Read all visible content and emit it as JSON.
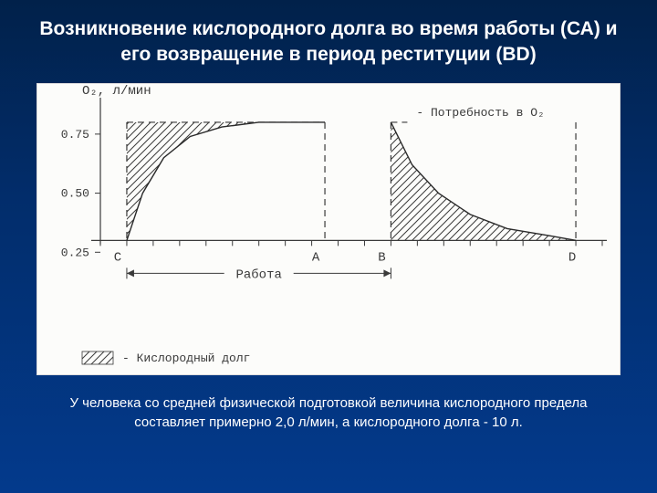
{
  "title": "Возникновение кислородного  долга во время работы (СА) и его возвращение в период реституции (BD)",
  "caption": "У человека со средней физической подготовкой величина кислородного предела составляет примерно 2,0 л/мин, а кислородного долга - 10 л.",
  "chart": {
    "type": "line",
    "background_color": "#fcfcfa",
    "axis_color": "#3a3a3a",
    "curve_color": "#2a2a2a",
    "hatch_color": "#3a3a3a",
    "label_color": "#3a3a3a",
    "label_font_family": "Courier New, monospace",
    "label_fontsize": 14,
    "small_label_fontsize": 13,
    "y_axis_label": "O₂, л/мин",
    "y_ticks": [
      {
        "value": 0.25,
        "label": "0.25"
      },
      {
        "value": 0.5,
        "label": "0.50"
      },
      {
        "value": 0.75,
        "label": "0.75"
      }
    ],
    "ylim": [
      0.0,
      0.85
    ],
    "xlim": [
      0,
      19
    ],
    "baseline_y": 0.3,
    "plateau_y": 0.8,
    "nodes": [
      {
        "id": "C",
        "x": 1.0,
        "label": "C"
      },
      {
        "id": "A",
        "x": 8.5,
        "label": "A"
      },
      {
        "id": "B",
        "x": 11.0,
        "label": "B"
      },
      {
        "id": "D",
        "x": 18.0,
        "label": "D"
      }
    ],
    "x_tick_step": 1,
    "work_label": "Работа",
    "legend": [
      {
        "key": "hatch",
        "label": "- Кислородный долг"
      },
      {
        "key": "dashed",
        "label": "- Потребность в O₂"
      }
    ],
    "deficit_curve": [
      {
        "x": 1.0,
        "y": 0.3
      },
      {
        "x": 1.6,
        "y": 0.5
      },
      {
        "x": 2.4,
        "y": 0.65
      },
      {
        "x": 3.4,
        "y": 0.74
      },
      {
        "x": 4.6,
        "y": 0.78
      },
      {
        "x": 6.0,
        "y": 0.8
      },
      {
        "x": 8.5,
        "y": 0.8
      }
    ],
    "recovery_curve": [
      {
        "x": 11.0,
        "y": 0.8
      },
      {
        "x": 11.8,
        "y": 0.62
      },
      {
        "x": 12.8,
        "y": 0.5
      },
      {
        "x": 14.0,
        "y": 0.41
      },
      {
        "x": 15.4,
        "y": 0.35
      },
      {
        "x": 17.0,
        "y": 0.32
      },
      {
        "x": 18.0,
        "y": 0.3
      }
    ]
  }
}
